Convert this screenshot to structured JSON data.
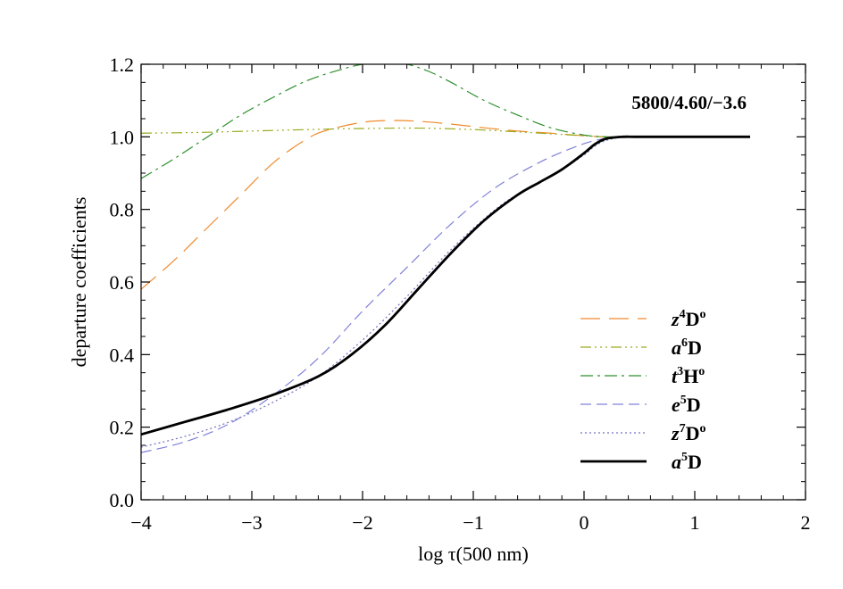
{
  "chart_data": {
    "type": "line",
    "title": "",
    "annotation": "5800/4.60/−3.6",
    "xlabel": "log τ(500 nm)",
    "ylabel": "departure coefficients",
    "xlim": [
      -4,
      2
    ],
    "ylim": [
      0,
      1.2
    ],
    "xticks": [
      -4,
      -3,
      -2,
      -1,
      0,
      1,
      2
    ],
    "xtick_labels": [
      "−4",
      "−3",
      "−2",
      "−1",
      "0",
      "1",
      "2"
    ],
    "yticks": [
      0,
      0.2,
      0.4,
      0.6,
      0.8,
      1.0,
      1.2
    ],
    "ytick_labels": [
      "0.0",
      "0.2",
      "0.4",
      "0.6",
      "0.8",
      "1.0",
      "1.2"
    ],
    "legend_position": "bottom-right",
    "series": [
      {
        "name": "z4Do",
        "label_letter": "z",
        "label_sup": "4",
        "label_main": "D",
        "label_sup2": "o",
        "color": "#f08a2c",
        "dash": "22,10",
        "width": 1.2,
        "x": [
          -4,
          -3.7,
          -3.4,
          -3.1,
          -2.8,
          -2.5,
          -2.3,
          -2.0,
          -1.75,
          -1.5,
          -1.2,
          -0.9,
          -0.6,
          -0.3,
          0,
          0.2,
          0.3,
          0.5,
          1.0,
          1.5
        ],
        "y": [
          0.58,
          0.66,
          0.75,
          0.84,
          0.93,
          0.995,
          1.02,
          1.04,
          1.045,
          1.043,
          1.035,
          1.025,
          1.016,
          1.01,
          1.003,
          1.0,
          1.0,
          1.0,
          1.0,
          1.0
        ]
      },
      {
        "name": "a6D",
        "label_letter": "a",
        "label_sup": "6",
        "label_main": "D",
        "label_sup2": "",
        "color": "#9aaa1e",
        "dash": "12,4,2,4,2,4,2,4",
        "width": 1.2,
        "x": [
          -4,
          -3.5,
          -3.0,
          -2.5,
          -2.0,
          -1.5,
          -1.0,
          -0.5,
          0,
          0.2,
          0.5,
          1.0,
          1.5
        ],
        "y": [
          1.01,
          1.012,
          1.016,
          1.02,
          1.023,
          1.024,
          1.02,
          1.012,
          1.003,
          1.0,
          1.0,
          1.0,
          1.0
        ]
      },
      {
        "name": "t3Ho",
        "label_letter": "t",
        "label_sup": "3",
        "label_main": "H",
        "label_sup2": "o",
        "color": "#2d8f2d",
        "dash": "14,5,3,5",
        "width": 1.2,
        "x": [
          -4,
          -3.7,
          -3.4,
          -3.1,
          -2.8,
          -2.5,
          -2.2,
          -2.0,
          -1.8,
          -1.6,
          -1.4,
          -1.2,
          -0.9,
          -0.6,
          -0.3,
          0,
          0.2,
          0.5,
          1.0,
          1.5
        ],
        "y": [
          0.885,
          0.94,
          1.0,
          1.06,
          1.11,
          1.155,
          1.185,
          1.2,
          1.205,
          1.2,
          1.18,
          1.15,
          1.1,
          1.06,
          1.025,
          1.005,
          1.0,
          1.0,
          1.0,
          1.0
        ]
      },
      {
        "name": "e5D",
        "label_letter": "e",
        "label_sup": "5",
        "label_main": "D",
        "label_sup2": "",
        "color": "#8080d8",
        "dash": "12,6",
        "width": 1.2,
        "x": [
          -4,
          -3.6,
          -3.2,
          -2.8,
          -2.4,
          -2.0,
          -1.6,
          -1.2,
          -0.8,
          -0.4,
          -0.1,
          0.1,
          0.3,
          0.5,
          1.0,
          1.5
        ],
        "y": [
          0.13,
          0.16,
          0.21,
          0.29,
          0.39,
          0.52,
          0.64,
          0.76,
          0.86,
          0.93,
          0.97,
          0.99,
          1.0,
          1.0,
          1.0,
          1.0
        ]
      },
      {
        "name": "z7Do",
        "label_letter": "z",
        "label_sup": "7",
        "label_main": "D",
        "label_sup2": "o",
        "color": "#7070c0",
        "dash": "2,3",
        "width": 1.2,
        "x": [
          -4,
          -3.6,
          -3.2,
          -2.8,
          -2.4,
          -2.0,
          -1.6,
          -1.2,
          -0.8,
          -0.5,
          -0.2,
          0,
          0.1,
          0.2,
          0.35,
          0.5,
          1.0,
          1.5
        ],
        "y": [
          0.145,
          0.175,
          0.215,
          0.27,
          0.34,
          0.44,
          0.56,
          0.69,
          0.8,
          0.86,
          0.91,
          0.95,
          0.975,
          0.99,
          1.0,
          1.0,
          1.0,
          1.0
        ]
      },
      {
        "name": "a5D",
        "label_letter": "a",
        "label_sup": "5",
        "label_main": "D",
        "label_sup2": "",
        "color": "#000000",
        "dash": "",
        "width": 2.8,
        "x": [
          -4,
          -3.6,
          -3.2,
          -2.8,
          -2.4,
          -2.1,
          -1.8,
          -1.5,
          -1.2,
          -0.9,
          -0.6,
          -0.4,
          -0.2,
          0,
          0.1,
          0.2,
          0.35,
          0.5,
          1.0,
          1.5
        ],
        "y": [
          0.18,
          0.215,
          0.25,
          0.29,
          0.34,
          0.4,
          0.48,
          0.58,
          0.68,
          0.77,
          0.84,
          0.875,
          0.91,
          0.955,
          0.98,
          0.995,
          1.0,
          1.0,
          1.0,
          1.0
        ]
      }
    ]
  }
}
